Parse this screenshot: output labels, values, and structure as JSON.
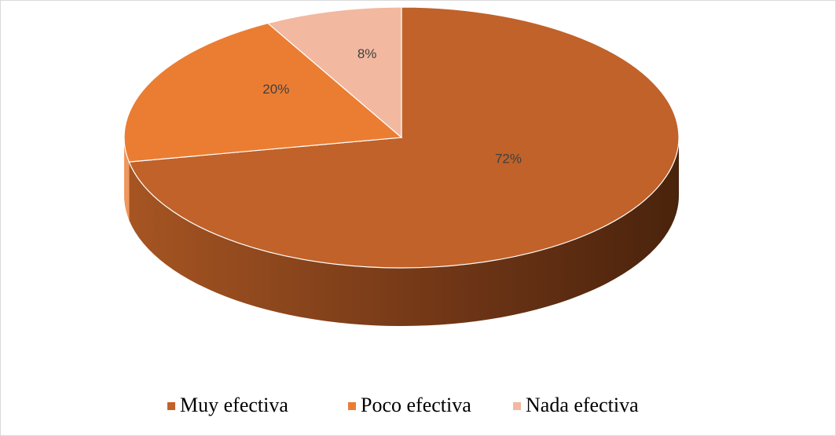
{
  "chart_data": {
    "type": "pie",
    "categories": [
      "Muy efectiva",
      "Poco efectiva",
      "Nada efectiva"
    ],
    "values": [
      72,
      20,
      8
    ],
    "value_labels": [
      "72%",
      "20%",
      "8%"
    ],
    "colors": [
      "#C0622A",
      "#EB7D33",
      "#F2B8A0"
    ],
    "legend": "bottom"
  }
}
